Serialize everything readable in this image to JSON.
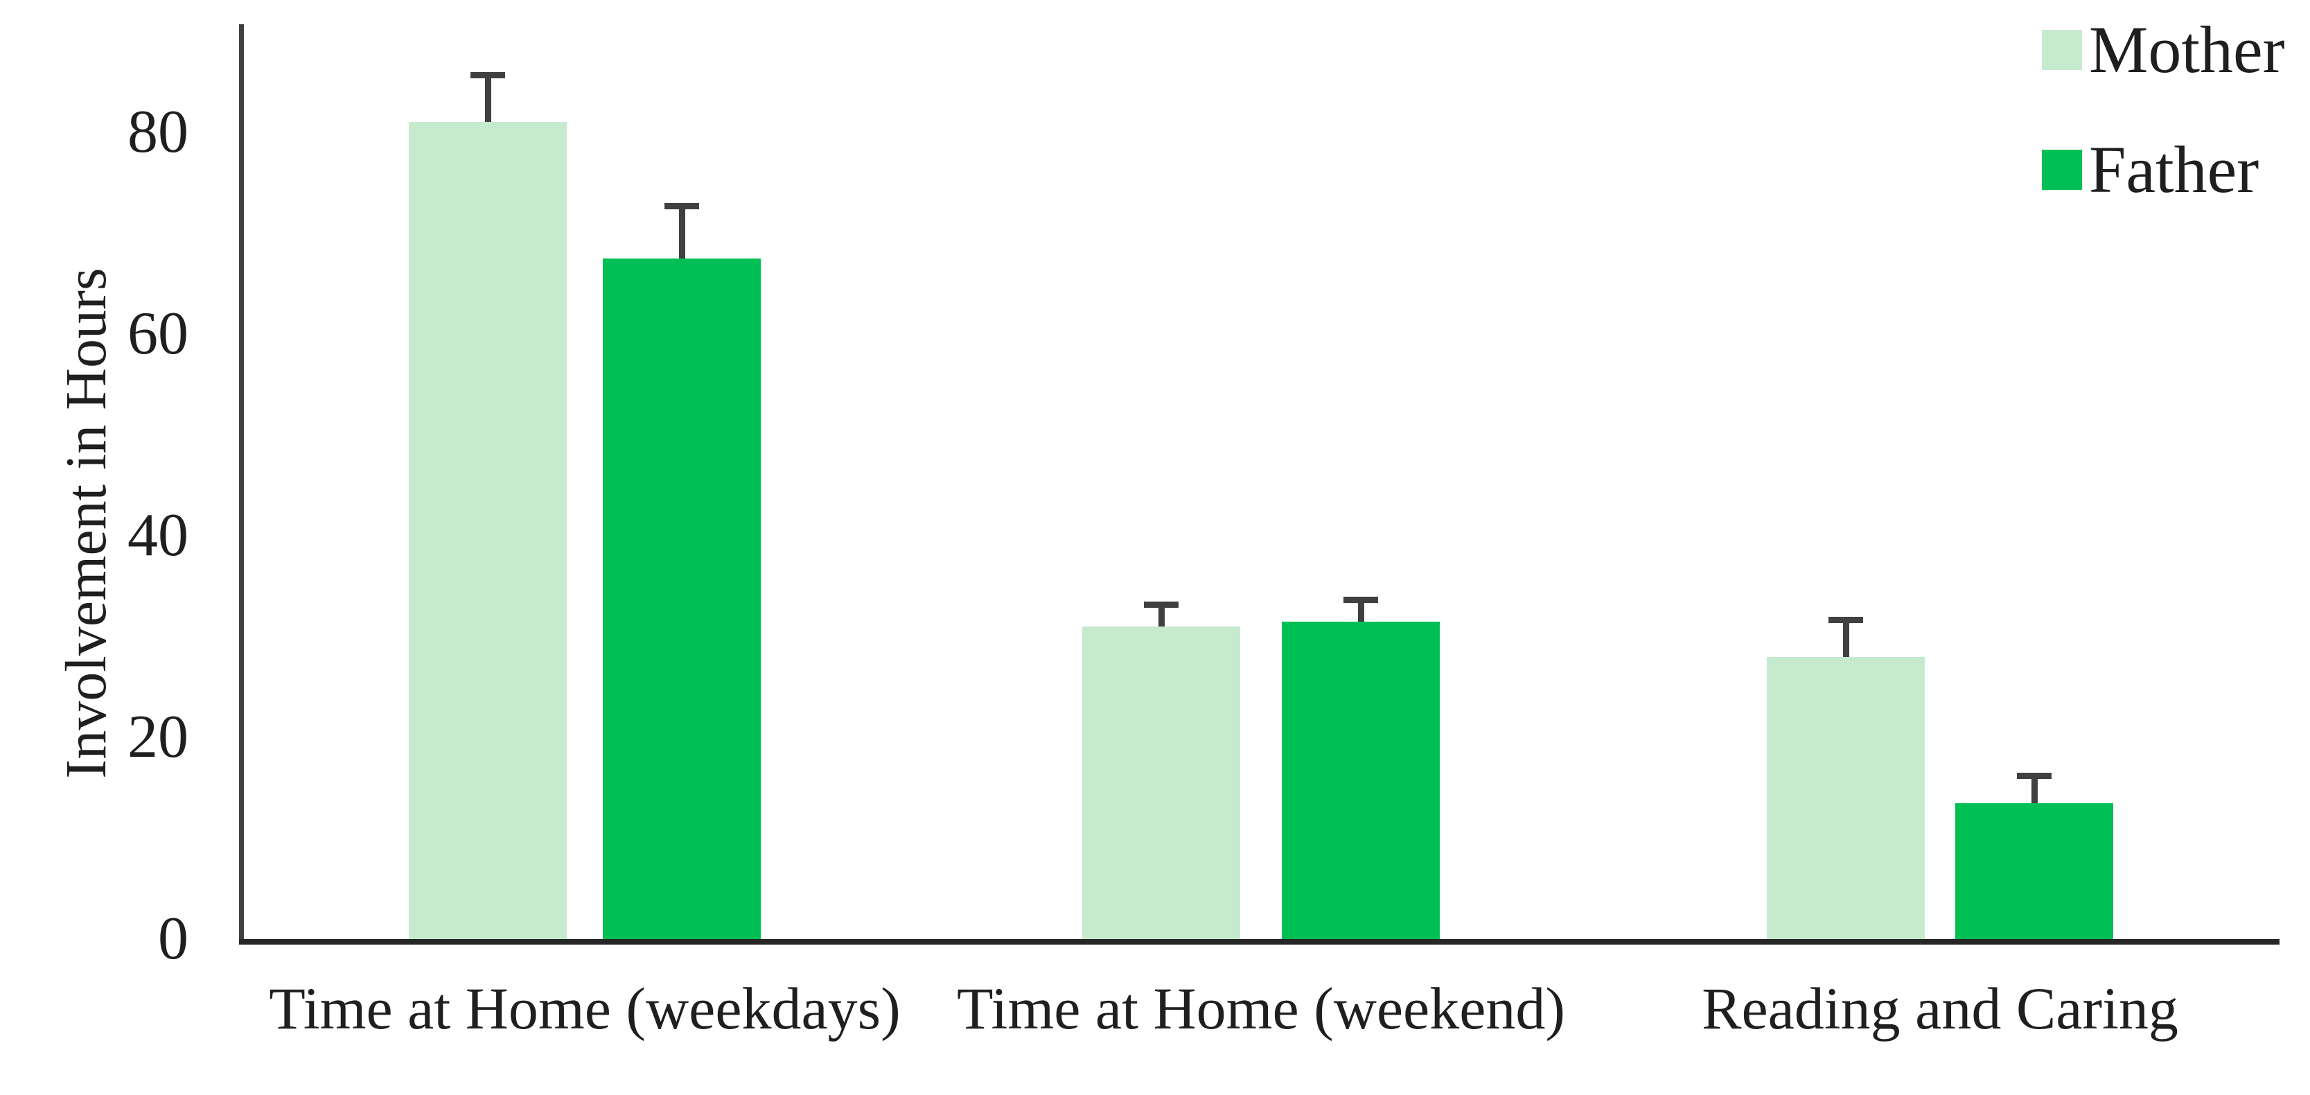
{
  "chart_data": {
    "type": "bar",
    "title": "",
    "xlabel": "",
    "ylabel": "Involvement in Hours",
    "categories": [
      "Time at Home (weekdays)",
      "Time at Home (weekend)",
      "Reading and Caring"
    ],
    "series": [
      {
        "name": "Mother",
        "color": "#C5EACE",
        "values": [
          81,
          31,
          28
        ],
        "errors_plus": [
          4.5,
          2,
          3.5
        ]
      },
      {
        "name": "Father",
        "color": "#00BF55",
        "values": [
          67.5,
          31.5,
          13.5
        ],
        "errors_plus": [
          5,
          2,
          2.5
        ]
      }
    ],
    "y_axis": {
      "ticks": [
        0,
        20,
        40,
        60,
        80
      ],
      "ylim": [
        0,
        90
      ],
      "grid": false
    },
    "legend_position": "top-right",
    "error_bar_color": "#404040",
    "axis_color": "#3f3f3f",
    "text_color": "#1f1f1f"
  }
}
